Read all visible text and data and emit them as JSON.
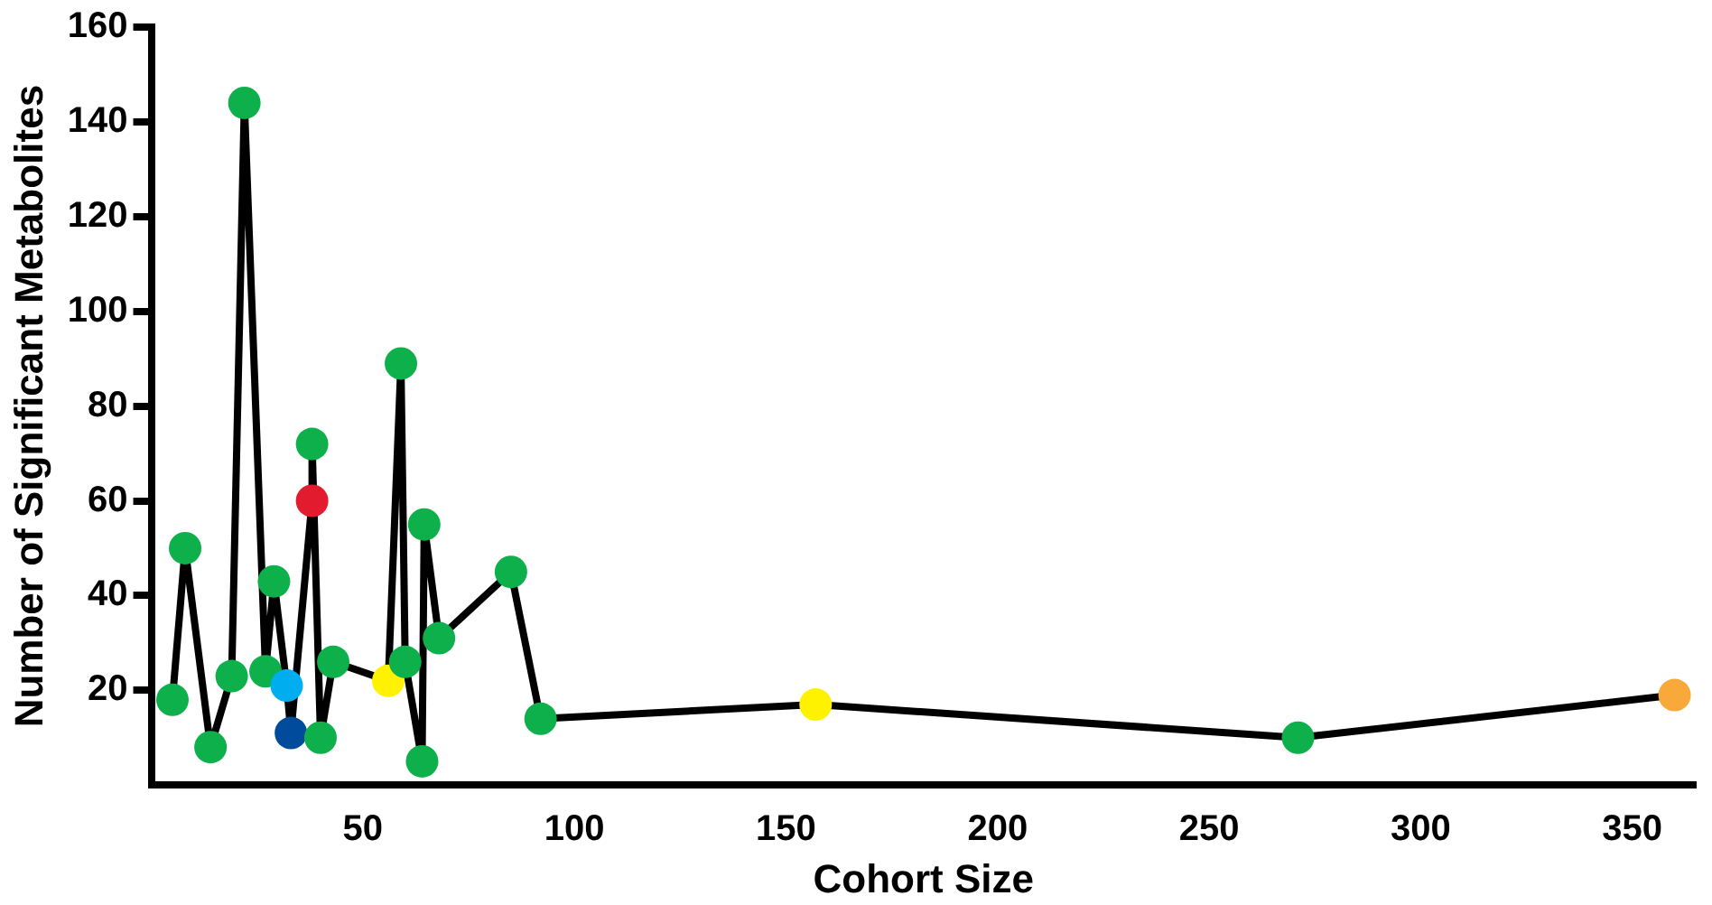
{
  "chart_data": {
    "type": "line",
    "xlabel": "Cohort Size",
    "ylabel": "Number of Significant Metabolites",
    "xlim": [
      0,
      365
    ],
    "ylim": [
      0,
      160
    ],
    "xticks": [
      50,
      100,
      150,
      200,
      250,
      300,
      350
    ],
    "yticks": [
      20,
      40,
      60,
      80,
      100,
      120,
      140,
      160
    ],
    "grid": false,
    "legend": false,
    "marker": "circle",
    "line_style": "solid",
    "series": [
      {
        "color": "#000000",
        "x": [
          5,
          8,
          14,
          19,
          22,
          27,
          29,
          32,
          33,
          38,
          38,
          40,
          43,
          56,
          59,
          60,
          64,
          64.5,
          68,
          85,
          92,
          157,
          271,
          360
        ],
        "values": [
          18,
          50,
          8,
          23,
          144,
          24,
          43,
          21,
          11,
          60,
          72,
          10,
          26,
          22,
          89,
          26,
          5,
          55,
          31,
          45,
          14,
          17,
          10,
          19
        ],
        "colors": [
          "#0db04b",
          "#0db04b",
          "#0db04b",
          "#0db04b",
          "#0db04b",
          "#0db04b",
          "#0db04b",
          "#00aeef",
          "#004b9b",
          "#e31b2f",
          "#0db04b",
          "#0db04b",
          "#0db04b",
          "#fff200",
          "#0db04b",
          "#0db04b",
          "#0db04b",
          "#0db04b",
          "#0db04b",
          "#0db04b",
          "#0db04b",
          "#fff200",
          "#0db04b",
          "#f9a93a"
        ]
      }
    ]
  }
}
